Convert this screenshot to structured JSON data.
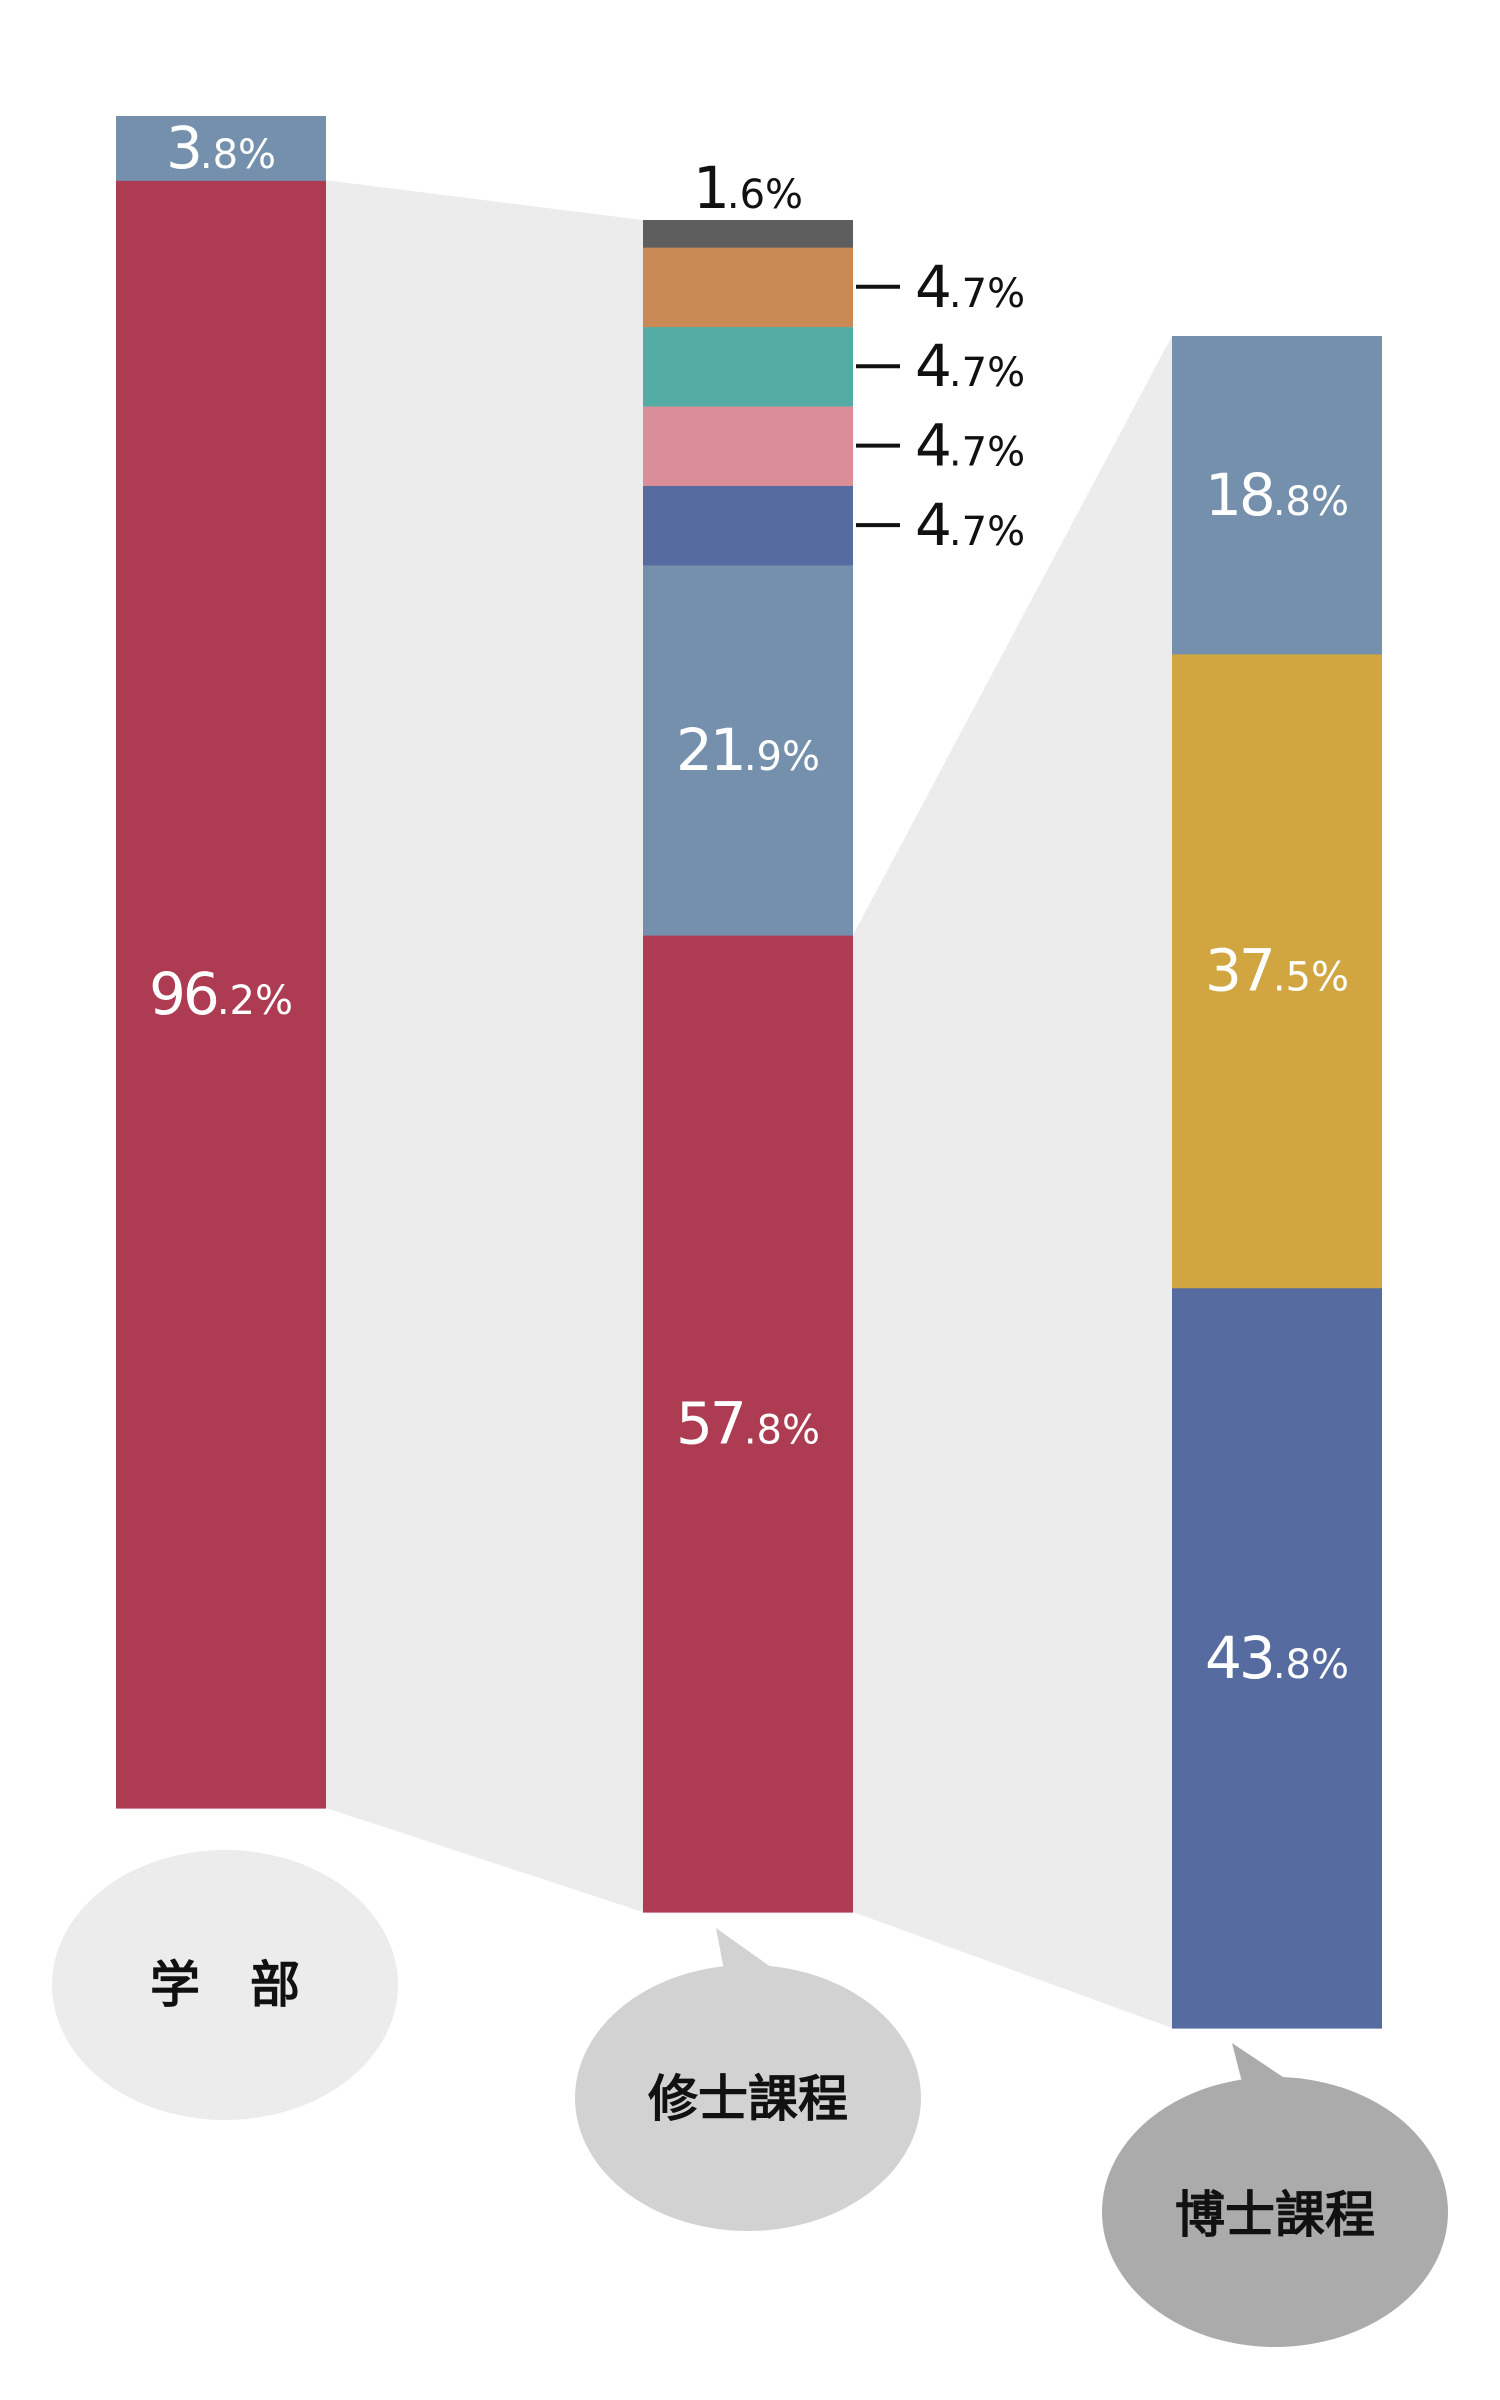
{
  "chart_data": {
    "type": "bar",
    "stacked": true,
    "percent_stacked": true,
    "title": "",
    "xlabel": "",
    "ylabel": "",
    "ylim": [
      0,
      100
    ],
    "grid": false,
    "categories": [
      "学　部",
      "修士課程",
      "博士課程"
    ],
    "bars": [
      {
        "category": "学　部",
        "segments": [
          {
            "value": 96.2,
            "label": "96.2%",
            "color": "#ad3b52"
          },
          {
            "value": 3.8,
            "label": "3.8%",
            "color": "#7590ad"
          }
        ]
      },
      {
        "category": "修士課程",
        "segments": [
          {
            "value": 57.8,
            "label": "57.8%",
            "color": "#ad3b52"
          },
          {
            "value": 21.9,
            "label": "21.9%",
            "color": "#7590ad"
          },
          {
            "value": 4.7,
            "label": "4.7%",
            "color": "#566ca0"
          },
          {
            "value": 4.7,
            "label": "4.7%",
            "color": "#da8f98"
          },
          {
            "value": 4.7,
            "label": "4.7%",
            "color": "#54ada4"
          },
          {
            "value": 4.7,
            "label": "4.7%",
            "color": "#c98a56"
          },
          {
            "value": 1.6,
            "label": "1.6%",
            "color": "#5e5e5e"
          }
        ]
      },
      {
        "category": "博士課程",
        "segments": [
          {
            "value": 43.8,
            "label": "43.8%",
            "color": "#566ca0"
          },
          {
            "value": 37.5,
            "label": "37.5%",
            "color": "#d1a640"
          },
          {
            "value": 18.8,
            "label": "18.8%",
            "color": "#7590ad"
          }
        ]
      }
    ]
  },
  "colors": {
    "connector": "#ececec",
    "label_inside": "#ffffff",
    "label_outside": "#111111",
    "bubbles": [
      "#ececec",
      "#d2d2d2",
      "#ababab"
    ]
  }
}
